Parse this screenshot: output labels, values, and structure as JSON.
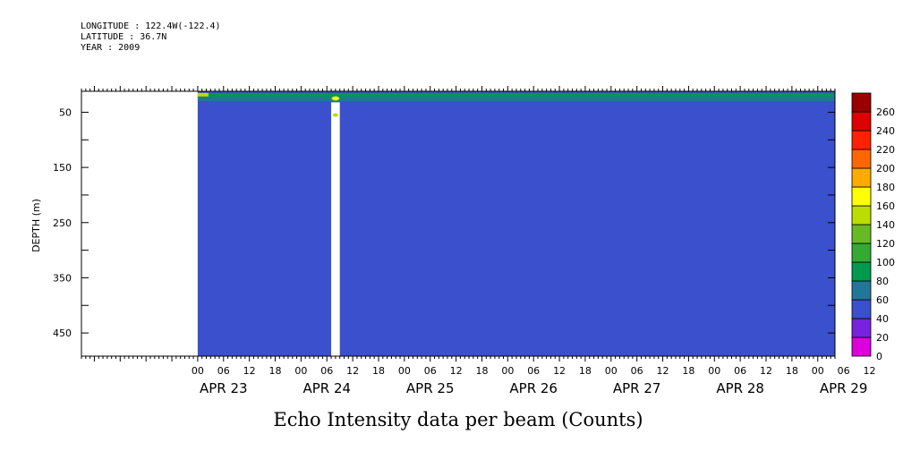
{
  "header": {
    "longitude": "LONGITUDE : 122.4W(-122.4)",
    "latitude": "LATITUDE : 36.7N",
    "year": "YEAR : 2009"
  },
  "chart_data": {
    "type": "heatmap",
    "title": "Echo Intensity data per beam (Counts)",
    "ylabel": "DEPTH (m)",
    "xlabel": "",
    "y_axis": {
      "range": [
        12,
        492
      ],
      "inverted": true,
      "ticks": [
        50,
        150,
        250,
        350,
        450
      ],
      "minor_step": 50
    },
    "x_axis": {
      "hours_range": [
        -27,
        1,
        148
      ],
      "hour_ticks": [
        "00",
        "06",
        "12",
        "18",
        "00",
        "06",
        "12",
        "18",
        "00",
        "06",
        "12",
        "18",
        "00",
        "06",
        "12",
        "18",
        "00",
        "06",
        "12",
        "18",
        "00",
        "06",
        "12",
        "18",
        "00",
        "06",
        "12"
      ],
      "day_labels": [
        "APR 23",
        "APR 24",
        "APR 25",
        "APR 26",
        "APR 27",
        "APR 28",
        "APR 29"
      ]
    },
    "dominant_value": "40-60",
    "surface_layer": {
      "depth_range": [
        15,
        30
      ],
      "value": "60-100"
    },
    "data_gap": {
      "start_hour": 31,
      "end_hour": 33
    },
    "colorbar": {
      "levels": [
        0,
        20,
        40,
        60,
        80,
        100,
        120,
        140,
        160,
        180,
        200,
        220,
        240,
        260
      ],
      "colors": [
        "#dd00dd",
        "#7722dd",
        "#3a50cc",
        "#227799",
        "#00994d",
        "#33aa33",
        "#66bb22",
        "#bbdd00",
        "#ffff00",
        "#ffaa00",
        "#ff6600",
        "#ff2200",
        "#dd0000",
        "#990000"
      ]
    }
  }
}
